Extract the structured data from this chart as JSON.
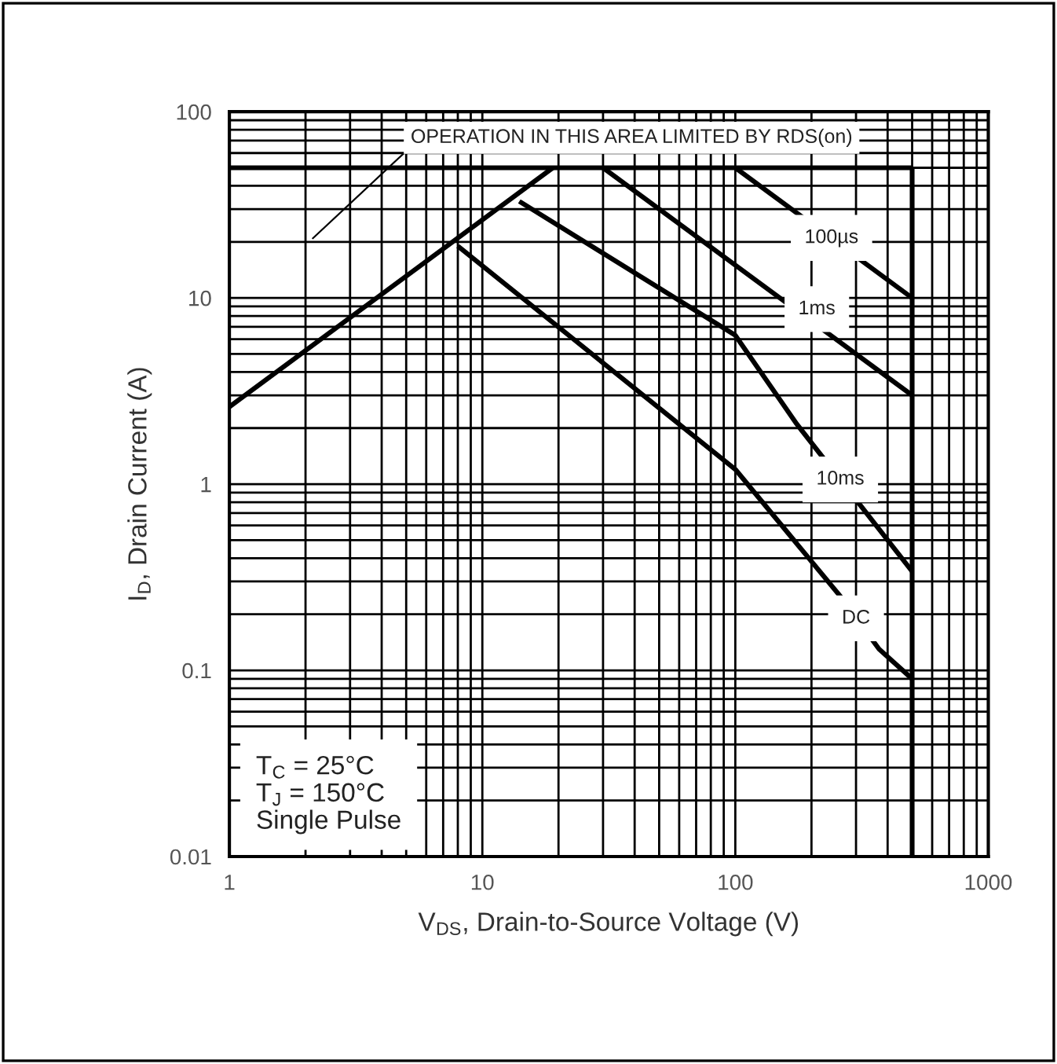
{
  "chart_data": {
    "type": "line",
    "xlabel": "V$_{DS}$, Drain-to-Source Voltage (V)",
    "ylabel": "I$_{D}$, Drain Current (A)",
    "log": "xy",
    "grid": true,
    "marker": "none",
    "line_style": "solid",
    "xlim": [
      1,
      1000
    ],
    "ylim": [
      0.01,
      100
    ],
    "xticks": [
      1,
      10,
      100,
      1000
    ],
    "yticks": [
      0.01,
      0.1,
      1,
      10,
      100
    ],
    "series": [
      {
        "color": "#000000",
        "x": [
          1,
          19
        ],
        "values": [
          2.6,
          50
        ]
      },
      {
        "color": "#000000",
        "x": [
          1,
          500
        ],
        "values": [
          50,
          50
        ]
      },
      {
        "color": "#000000",
        "x": [
          500,
          500
        ],
        "values": [
          0.01,
          50
        ]
      },
      {
        "color": "#000000",
        "x": [
          100,
          500
        ],
        "values": [
          50,
          10
        ]
      },
      {
        "color": "#000000",
        "x": [
          30,
          500
        ],
        "values": [
          50,
          3
        ]
      },
      {
        "color": "#000000",
        "x": [
          14,
          100,
          175,
          500
        ],
        "values": [
          33,
          6.3,
          2.1,
          0.34
        ]
      },
      {
        "color": "#000000",
        "x": [
          8,
          100,
          260,
          370,
          500
        ],
        "values": [
          19,
          1.2,
          0.25,
          0.13,
          0.09
        ]
      }
    ],
    "annotations": [
      "OPERATION IN THIS AREA LIMITED BY RDS(on)",
      {
        "text": "100µs",
        "x": 240,
        "y": 21
      },
      {
        "text": "1ms",
        "x": 210,
        "y": 8.7
      },
      {
        "text": "10ms",
        "x": 260,
        "y": 1.06
      },
      {
        "text": "DC",
        "x": 300,
        "y": 0.19
      },
      "T$_{C}$ = 25°C\nT$_{J}$ = 150°C\nSingle Pulse"
    ]
  }
}
